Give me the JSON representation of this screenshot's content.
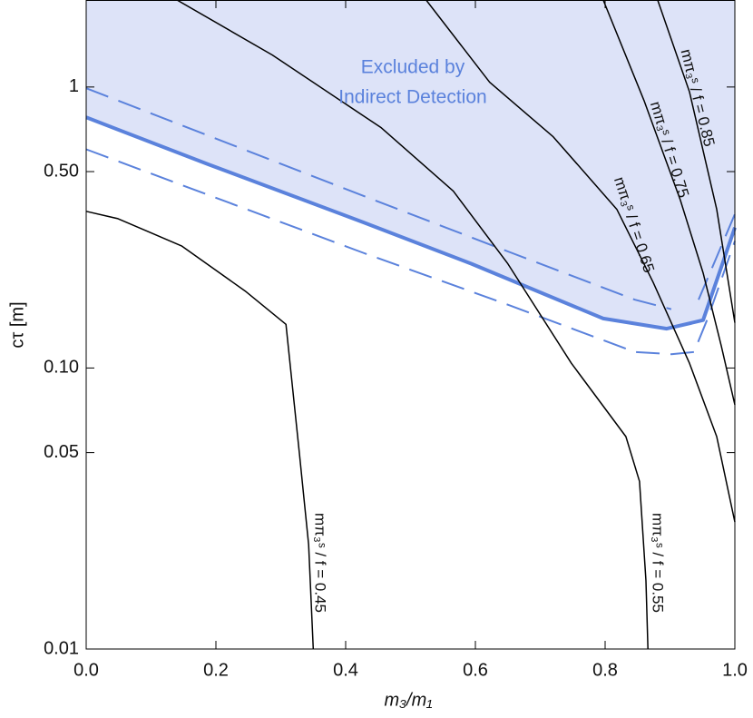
{
  "chart_data": {
    "type": "line",
    "x_label": "m₃/m₁",
    "y_label": "cτ [m]",
    "log_y": true,
    "xlim": [
      0,
      1
    ],
    "ylim": [
      0.01,
      2.04
    ],
    "xticks": [
      {
        "value": 0,
        "label": "0.0"
      },
      0.2,
      0.4,
      0.6,
      0.8,
      {
        "value": 1,
        "label": "1.0"
      }
    ],
    "yticks": [
      0.01,
      0.05,
      {
        "value": 0.1,
        "label": "0.10"
      },
      {
        "value": 0.5,
        "label": "0.50"
      },
      1
    ],
    "annotation": [
      "Excluded by",
      "Indirect Detection"
    ],
    "region_color": "#dde3f8",
    "series": [
      {
        "color": "#5b82dc",
        "style": "solid",
        "linewidth": 4,
        "fill_above": true,
        "x": [
          0,
          0.189,
          0.427,
          0.594,
          0.797,
          0.895,
          0.951,
          1.0
        ],
        "values": [
          0.78,
          0.53,
          0.33,
          0.235,
          0.15,
          0.138,
          0.148,
          0.316
        ]
      },
      {
        "color": "#5b82dc",
        "style": "dashed",
        "linewidth": 2,
        "x": [
          0,
          0.427,
          0.65,
          0.846,
          0.902,
          null,
          0.944,
          1.0
        ],
        "values": [
          0.99,
          0.41,
          0.26,
          0.175,
          0.162,
          null,
          0.175,
          0.353
        ]
      },
      {
        "color": "#5b82dc",
        "style": "dashed",
        "linewidth": 2,
        "x": [
          0,
          0.427,
          0.65,
          0.846,
          0.902,
          0.937,
          0.958,
          1.0
        ],
        "values": [
          0.6,
          0.257,
          0.168,
          0.114,
          0.112,
          0.114,
          0.15,
          0.283
        ]
      },
      {
        "color": "#000000",
        "style": "solid",
        "linewidth": 1.5,
        "label": "mπ₃ˢ / f = 0.45",
        "x": [
          0,
          0.049,
          0.147,
          0.245,
          0.308,
          0.329,
          0.343,
          0.35
        ],
        "values": [
          0.361,
          0.34,
          0.272,
          0.188,
          0.143,
          0.049,
          0.0235,
          0.01
        ]
      },
      {
        "color": "#000000",
        "style": "solid",
        "linewidth": 1.5,
        "label": "mπ₃ˢ / f = 0.55",
        "x": [
          0.14,
          0.287,
          0.455,
          0.566,
          0.65,
          0.748,
          0.832,
          0.853,
          0.863,
          0.866
        ],
        "values": [
          2.04,
          1.3,
          0.716,
          0.426,
          0.235,
          0.104,
          0.057,
          0.0395,
          0.0175,
          0.01
        ]
      },
      {
        "color": "#000000",
        "style": "solid",
        "linewidth": 1.5,
        "label": "mπ₃ˢ / f = 0.65",
        "x": [
          0.524,
          0.622,
          0.72,
          0.818,
          0.874,
          0.93,
          0.972,
          1.0
        ],
        "values": [
          2.04,
          1.04,
          0.665,
          0.367,
          0.202,
          0.104,
          0.057,
          0.0283
        ]
      },
      {
        "color": "#000000",
        "style": "solid",
        "linewidth": 1.5,
        "label": "mπ₃ˢ / f = 0.75",
        "x": [
          0.797,
          0.86,
          0.916,
          0.951,
          0.979,
          1.0
        ],
        "values": [
          2.04,
          0.895,
          0.396,
          0.218,
          0.12,
          0.074
        ]
      },
      {
        "color": "#000000",
        "style": "solid",
        "linewidth": 1.5,
        "label": "mπ₃ˢ / f = 0.85",
        "x": [
          0.881,
          0.93,
          0.972,
          1.0
        ],
        "values": [
          2.04,
          0.96,
          0.367,
          0.145
        ]
      }
    ]
  }
}
